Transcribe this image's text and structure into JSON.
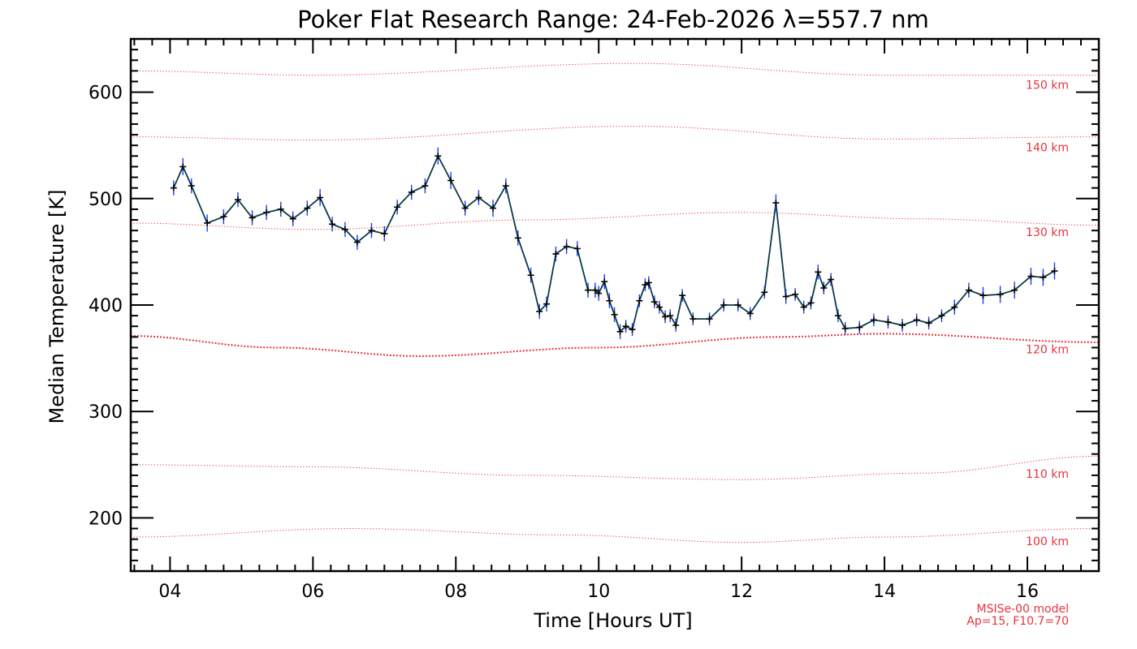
{
  "colors": {
    "data_line": "#0b3a4a",
    "error_bar": "#1e3cff",
    "marker": "#000000",
    "model_line": "#e8323c",
    "axis": "#000000"
  },
  "model_note": {
    "line1": "MSISe-00 model",
    "line2": "Ap=15, F10.7=70"
  },
  "chart_data": {
    "type": "line",
    "title": "Poker Flat Research Range: 24-Feb-2026 λ=557.7 nm",
    "xlabel": "Time [Hours UT]",
    "ylabel": "Median Temperature [K]",
    "xlim": [
      3.45,
      17.0
    ],
    "ylim": [
      150,
      650
    ],
    "x_ticks": [
      4,
      6,
      8,
      10,
      12,
      14,
      16
    ],
    "x_tick_labels": [
      "04",
      "06",
      "08",
      "10",
      "12",
      "14",
      "16"
    ],
    "y_ticks": [
      200,
      300,
      400,
      500,
      600
    ],
    "y_tick_labels": [
      "200",
      "300",
      "400",
      "500",
      "600"
    ],
    "series": [
      {
        "points": [
          [
            4.05,
            510,
            7
          ],
          [
            4.18,
            530,
            8
          ],
          [
            4.3,
            512,
            7
          ],
          [
            4.52,
            477,
            8
          ],
          [
            4.75,
            483,
            7
          ],
          [
            4.95,
            499,
            7
          ],
          [
            5.15,
            482,
            7
          ],
          [
            5.35,
            487,
            7
          ],
          [
            5.55,
            490,
            7
          ],
          [
            5.72,
            481,
            7
          ],
          [
            5.92,
            491,
            7
          ],
          [
            6.1,
            501,
            8
          ],
          [
            6.27,
            476,
            7
          ],
          [
            6.45,
            471,
            7
          ],
          [
            6.62,
            459,
            7
          ],
          [
            6.82,
            470,
            7
          ],
          [
            7.0,
            467,
            7
          ],
          [
            7.18,
            492,
            7
          ],
          [
            7.38,
            506,
            7
          ],
          [
            7.57,
            512,
            7
          ],
          [
            7.75,
            540,
            8
          ],
          [
            7.93,
            517,
            8
          ],
          [
            8.13,
            491,
            7
          ],
          [
            8.32,
            501,
            7
          ],
          [
            8.52,
            491,
            8
          ],
          [
            8.7,
            512,
            7
          ],
          [
            8.87,
            463,
            7
          ],
          [
            9.05,
            428,
            7
          ],
          [
            9.17,
            394,
            7
          ],
          [
            9.27,
            401,
            7
          ],
          [
            9.4,
            448,
            7
          ],
          [
            9.55,
            455,
            7
          ],
          [
            9.7,
            453,
            7
          ],
          [
            9.85,
            414,
            7
          ],
          [
            9.95,
            414,
            7
          ],
          [
            10.0,
            411,
            7
          ],
          [
            10.08,
            422,
            7
          ],
          [
            10.15,
            404,
            7
          ],
          [
            10.22,
            391,
            7
          ],
          [
            10.3,
            375,
            7
          ],
          [
            10.38,
            380,
            6
          ],
          [
            10.47,
            377,
            6
          ],
          [
            10.57,
            404,
            6
          ],
          [
            10.65,
            419,
            6
          ],
          [
            10.7,
            421,
            6
          ],
          [
            10.78,
            403,
            6
          ],
          [
            10.85,
            398,
            6
          ],
          [
            10.93,
            389,
            6
          ],
          [
            11.0,
            390,
            6
          ],
          [
            11.08,
            381,
            6
          ],
          [
            11.17,
            409,
            6
          ],
          [
            11.32,
            387,
            6
          ],
          [
            11.55,
            387,
            6
          ],
          [
            11.75,
            400,
            6
          ],
          [
            11.95,
            400,
            6
          ],
          [
            12.12,
            392,
            6
          ],
          [
            12.32,
            412,
            6
          ],
          [
            12.48,
            496,
            8
          ],
          [
            12.62,
            408,
            7
          ],
          [
            12.75,
            410,
            6
          ],
          [
            12.87,
            398,
            6
          ],
          [
            12.97,
            402,
            6
          ],
          [
            13.07,
            431,
            7
          ],
          [
            13.15,
            416,
            6
          ],
          [
            13.25,
            424,
            6
          ],
          [
            13.35,
            390,
            6
          ],
          [
            13.45,
            378,
            6
          ],
          [
            13.65,
            379,
            6
          ],
          [
            13.85,
            386,
            6
          ],
          [
            14.05,
            384,
            6
          ],
          [
            14.25,
            381,
            6
          ],
          [
            14.45,
            386,
            6
          ],
          [
            14.62,
            383,
            6
          ],
          [
            14.8,
            390,
            6
          ],
          [
            14.98,
            398,
            7
          ],
          [
            15.18,
            414,
            7
          ],
          [
            15.38,
            409,
            8
          ],
          [
            15.62,
            410,
            8
          ],
          [
            15.82,
            414,
            8
          ],
          [
            16.05,
            427,
            8
          ],
          [
            16.22,
            426,
            8
          ],
          [
            16.38,
            432,
            8
          ]
        ]
      }
    ],
    "model_curves": [
      {
        "label": "150 km",
        "x": [
          3.45,
          6.0,
          10.5,
          14.0,
          17.0
        ],
        "y": [
          620,
          616,
          627,
          616,
          616
        ],
        "thickness": "thin"
      },
      {
        "label": "140 km",
        "x": [
          3.45,
          6.0,
          10.5,
          14.0,
          17.0
        ],
        "y": [
          558,
          555,
          568,
          556,
          558
        ],
        "thickness": "thin"
      },
      {
        "label": "130 km",
        "x": [
          3.45,
          6.0,
          9.0,
          12.0,
          14.5,
          17.0
        ],
        "y": [
          477,
          471,
          480,
          487,
          481,
          475
        ],
        "thickness": "thin"
      },
      {
        "label": "120 km",
        "x": [
          3.45,
          5.5,
          7.5,
          10.0,
          12.5,
          14.0,
          17.0
        ],
        "y": [
          371,
          360,
          352,
          360,
          370,
          373,
          365
        ],
        "thickness": "thick"
      },
      {
        "label": "110 km",
        "x": [
          3.45,
          6.0,
          9.0,
          12.0,
          14.5,
          17.0
        ],
        "y": [
          250,
          248,
          240,
          236,
          242,
          258
        ],
        "thickness": "thin"
      },
      {
        "label": "100 km",
        "x": [
          3.45,
          6.5,
          9.5,
          12.0,
          14.0,
          17.0
        ],
        "y": [
          182,
          190,
          184,
          177,
          182,
          190
        ],
        "thickness": "thin"
      }
    ]
  }
}
